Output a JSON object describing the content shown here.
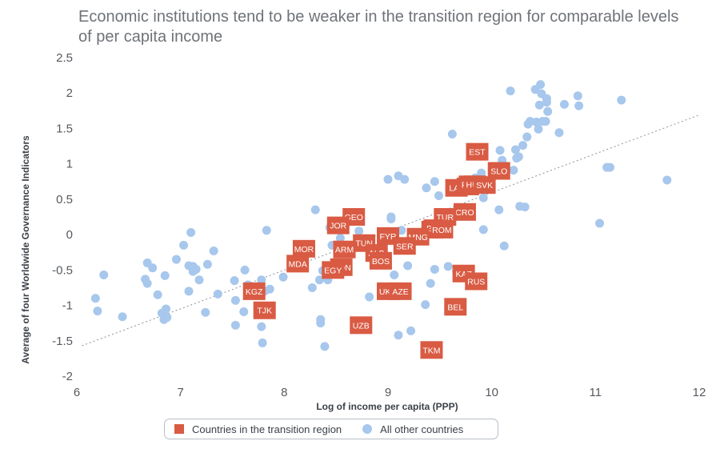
{
  "chart_data": {
    "type": "scatter",
    "title": "Economic institutions tend to be weaker in the transition region for comparable levels of per capita income",
    "xlabel": "Log of income per capita (PPP)",
    "ylabel": "Average of four Worldwide Governance Indicators",
    "xlim": [
      6,
      12
    ],
    "ylim": [
      -2,
      2.5
    ],
    "xticks": [
      "6",
      "7",
      "8",
      "9",
      "10",
      "11",
      "12"
    ],
    "yticks": [
      "2.5",
      "2",
      "1.5",
      "1",
      "0.5",
      "0",
      "-0.5",
      "-1",
      "-1.5",
      "-2"
    ],
    "grid": false,
    "legend_position": "bottom",
    "trendline": {
      "style": "dotted",
      "from": [
        6.05,
        -1.57
      ],
      "to": [
        12,
        1.69
      ]
    },
    "colors": {
      "transition": "#d95b43",
      "other": "#a7c7ec",
      "trendline": "#8a9099"
    },
    "series": [
      {
        "name": "Countries in the transition region",
        "marker": "square",
        "points": [
          {
            "label": "EST",
            "x": 9.86,
            "y": 1.17
          },
          {
            "label": "SLO",
            "x": 10.07,
            "y": 0.9
          },
          {
            "label": "LAT",
            "x": 9.66,
            "y": 0.66
          },
          {
            "label": "LIT",
            "x": 9.77,
            "y": 0.68
          },
          {
            "label": "POL",
            "x": 9.79,
            "y": 0.71
          },
          {
            "label": "HUN",
            "x": 9.84,
            "y": 0.71
          },
          {
            "label": "SVK",
            "x": 9.93,
            "y": 0.7
          },
          {
            "label": "CRO",
            "x": 9.74,
            "y": 0.32
          },
          {
            "label": "TUR",
            "x": 9.55,
            "y": 0.25
          },
          {
            "label": "MKD",
            "x": 9.43,
            "y": 0.07
          },
          {
            "label": "BUL",
            "x": 9.45,
            "y": 0.09
          },
          {
            "label": "ROM",
            "x": 9.52,
            "y": 0.07
          },
          {
            "label": "GEO",
            "x": 8.67,
            "y": 0.25
          },
          {
            "label": "JOR",
            "x": 8.52,
            "y": 0.13
          },
          {
            "label": "FYR",
            "x": 9.0,
            "y": -0.02
          },
          {
            "label": "MNG",
            "x": 9.29,
            "y": -0.03
          },
          {
            "label": "SER",
            "x": 9.16,
            "y": -0.16
          },
          {
            "label": "TUN",
            "x": 8.77,
            "y": -0.12
          },
          {
            "label": "MOR",
            "x": 8.19,
            "y": -0.2
          },
          {
            "label": "ARM",
            "x": 8.58,
            "y": -0.21
          },
          {
            "label": "ALB",
            "x": 8.89,
            "y": -0.26
          },
          {
            "label": "BOS",
            "x": 8.93,
            "y": -0.37
          },
          {
            "label": "MDA",
            "x": 8.13,
            "y": -0.41
          },
          {
            "label": "MON",
            "x": 8.55,
            "y": -0.46
          },
          {
            "label": "EGY",
            "x": 8.47,
            "y": -0.5
          },
          {
            "label": "KAZ",
            "x": 9.73,
            "y": -0.55
          },
          {
            "label": "RUS",
            "x": 9.85,
            "y": -0.66
          },
          {
            "label": "UKR",
            "x": 9.0,
            "y": -0.8
          },
          {
            "label": "AZE",
            "x": 9.12,
            "y": -0.8
          },
          {
            "label": "KGZ",
            "x": 7.71,
            "y": -0.8
          },
          {
            "label": "TJK",
            "x": 7.81,
            "y": -1.07
          },
          {
            "label": "BEL",
            "x": 9.65,
            "y": -1.02
          },
          {
            "label": "UZB",
            "x": 8.74,
            "y": -1.28
          },
          {
            "label": "TKM",
            "x": 9.42,
            "y": -1.63
          }
        ]
      },
      {
        "name": "All other countries",
        "marker": "circle",
        "points": [
          {
            "x": 6.18,
            "y": -0.9
          },
          {
            "x": 6.2,
            "y": -1.08
          },
          {
            "x": 6.26,
            "y": -0.57
          },
          {
            "x": 6.44,
            "y": -1.16
          },
          {
            "x": 6.66,
            "y": -0.63
          },
          {
            "x": 6.68,
            "y": -0.4
          },
          {
            "x": 6.68,
            "y": -0.69
          },
          {
            "x": 6.73,
            "y": -0.47
          },
          {
            "x": 6.78,
            "y": -0.85
          },
          {
            "x": 6.82,
            "y": -1.11
          },
          {
            "x": 6.84,
            "y": -1.2
          },
          {
            "x": 6.85,
            "y": -0.58
          },
          {
            "x": 6.86,
            "y": -1.05
          },
          {
            "x": 6.87,
            "y": -1.17
          },
          {
            "x": 6.96,
            "y": -0.35
          },
          {
            "x": 7.03,
            "y": -0.15
          },
          {
            "x": 7.08,
            "y": -0.44
          },
          {
            "x": 7.08,
            "y": -0.8
          },
          {
            "x": 7.1,
            "y": 0.03
          },
          {
            "x": 7.12,
            "y": -0.45
          },
          {
            "x": 7.12,
            "y": -0.52
          },
          {
            "x": 7.15,
            "y": -0.49
          },
          {
            "x": 7.18,
            "y": -0.64
          },
          {
            "x": 7.24,
            "y": -1.1
          },
          {
            "x": 7.26,
            "y": -0.42
          },
          {
            "x": 7.32,
            "y": -0.23
          },
          {
            "x": 7.36,
            "y": -0.84
          },
          {
            "x": 7.52,
            "y": -0.65
          },
          {
            "x": 7.53,
            "y": -0.93
          },
          {
            "x": 7.53,
            "y": -1.28
          },
          {
            "x": 7.61,
            "y": -1.09
          },
          {
            "x": 7.62,
            "y": -0.5
          },
          {
            "x": 7.65,
            "y": -0.71
          },
          {
            "x": 7.78,
            "y": -0.64
          },
          {
            "x": 7.78,
            "y": -1.3
          },
          {
            "x": 7.79,
            "y": -1.53
          },
          {
            "x": 7.81,
            "y": -0.8
          },
          {
            "x": 7.83,
            "y": 0.06
          },
          {
            "x": 7.86,
            "y": -0.77
          },
          {
            "x": 7.99,
            "y": -0.6
          },
          {
            "x": 8.22,
            "y": -0.2
          },
          {
            "x": 8.27,
            "y": -0.75
          },
          {
            "x": 8.3,
            "y": 0.35
          },
          {
            "x": 8.34,
            "y": -0.64
          },
          {
            "x": 8.35,
            "y": -1.2
          },
          {
            "x": 8.35,
            "y": -1.25
          },
          {
            "x": 8.37,
            "y": -0.51
          },
          {
            "x": 8.39,
            "y": -1.58
          },
          {
            "x": 8.42,
            "y": -0.51
          },
          {
            "x": 8.42,
            "y": -0.64
          },
          {
            "x": 8.44,
            "y": 0.1
          },
          {
            "x": 8.46,
            "y": -0.15
          },
          {
            "x": 8.54,
            "y": -0.05
          },
          {
            "x": 8.56,
            "y": 0.1
          },
          {
            "x": 8.71,
            "y": -0.09
          },
          {
            "x": 8.72,
            "y": 0.05
          },
          {
            "x": 8.82,
            "y": -0.88
          },
          {
            "x": 8.86,
            "y": -0.27
          },
          {
            "x": 9.0,
            "y": 0.78
          },
          {
            "x": 9.03,
            "y": 0.25
          },
          {
            "x": 9.03,
            "y": 0.22
          },
          {
            "x": 9.06,
            "y": -0.57
          },
          {
            "x": 9.1,
            "y": 0.83
          },
          {
            "x": 9.1,
            "y": -1.42
          },
          {
            "x": 9.13,
            "y": 0.06
          },
          {
            "x": 9.16,
            "y": 0.78
          },
          {
            "x": 9.19,
            "y": -0.44
          },
          {
            "x": 9.22,
            "y": -1.36
          },
          {
            "x": 9.36,
            "y": -0.99
          },
          {
            "x": 9.37,
            "y": 0.66
          },
          {
            "x": 9.41,
            "y": -0.69
          },
          {
            "x": 9.45,
            "y": -0.49
          },
          {
            "x": 9.45,
            "y": 0.75
          },
          {
            "x": 9.49,
            "y": 0.55
          },
          {
            "x": 9.52,
            "y": 0.05
          },
          {
            "x": 9.58,
            "y": -0.45
          },
          {
            "x": 9.62,
            "y": 1.42
          },
          {
            "x": 9.66,
            "y": -0.52
          },
          {
            "x": 9.77,
            "y": -0.59
          },
          {
            "x": 9.84,
            "y": 0.8
          },
          {
            "x": 9.9,
            "y": 0.87
          },
          {
            "x": 9.92,
            "y": 0.07
          },
          {
            "x": 9.92,
            "y": 0.52
          },
          {
            "x": 9.98,
            "y": 0.7
          },
          {
            "x": 10.07,
            "y": 0.35
          },
          {
            "x": 10.08,
            "y": 1.19
          },
          {
            "x": 10.1,
            "y": 1.05
          },
          {
            "x": 10.12,
            "y": -0.16
          },
          {
            "x": 10.18,
            "y": 2.03
          },
          {
            "x": 10.21,
            "y": 0.91
          },
          {
            "x": 10.23,
            "y": 1.2
          },
          {
            "x": 10.24,
            "y": 1.08
          },
          {
            "x": 10.26,
            "y": 1.1
          },
          {
            "x": 10.27,
            "y": 0.4
          },
          {
            "x": 10.3,
            "y": 1.26
          },
          {
            "x": 10.32,
            "y": 0.39
          },
          {
            "x": 10.34,
            "y": 1.38
          },
          {
            "x": 10.35,
            "y": 1.56
          },
          {
            "x": 10.37,
            "y": 1.6
          },
          {
            "x": 10.42,
            "y": 2.05
          },
          {
            "x": 10.43,
            "y": 1.59
          },
          {
            "x": 10.45,
            "y": 1.49
          },
          {
            "x": 10.46,
            "y": 1.83
          },
          {
            "x": 10.47,
            "y": 2.12
          },
          {
            "x": 10.48,
            "y": 1.99
          },
          {
            "x": 10.49,
            "y": 1.6
          },
          {
            "x": 10.52,
            "y": 1.6
          },
          {
            "x": 10.53,
            "y": 1.92
          },
          {
            "x": 10.53,
            "y": 1.87
          },
          {
            "x": 10.54,
            "y": 1.74
          },
          {
            "x": 10.65,
            "y": 1.44
          },
          {
            "x": 10.7,
            "y": 1.84
          },
          {
            "x": 10.83,
            "y": 1.96
          },
          {
            "x": 10.84,
            "y": 1.82
          },
          {
            "x": 11.04,
            "y": 0.16
          },
          {
            "x": 11.11,
            "y": 0.95
          },
          {
            "x": 11.14,
            "y": 0.95
          },
          {
            "x": 11.25,
            "y": 1.9
          },
          {
            "x": 11.69,
            "y": 0.77
          }
        ]
      }
    ]
  }
}
